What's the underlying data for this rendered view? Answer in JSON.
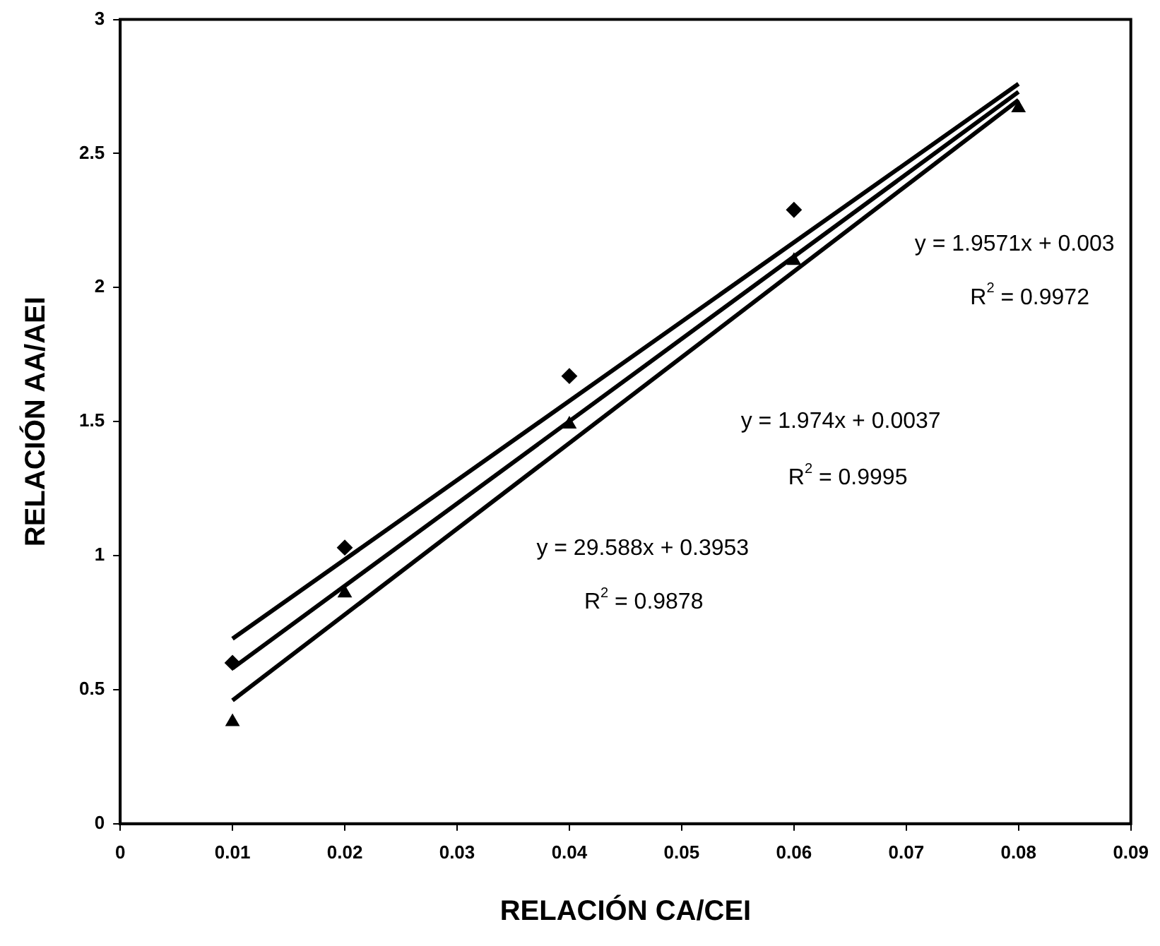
{
  "chart_data": {
    "type": "scatter",
    "xlabel": "RELACIÓN CA/CEI",
    "ylabel": "RELACIÓN AA/AEI",
    "xlim": [
      0,
      0.09
    ],
    "xticks": [
      0,
      0.01,
      0.02,
      0.03,
      0.04,
      0.05,
      0.06,
      0.07,
      0.08,
      0.09
    ],
    "ylim": [
      0,
      3
    ],
    "yticks": [
      0,
      0.5,
      1,
      1.5,
      2,
      2.5,
      3
    ],
    "grid": false,
    "legend": false,
    "series": [
      {
        "type": "scatter",
        "marker": "diamond",
        "color": "#000000",
        "x": [
          0.01,
          0.02,
          0.04,
          0.06
        ],
        "values": [
          0.6,
          1.03,
          1.67,
          2.29
        ]
      },
      {
        "type": "scatter",
        "marker": "triangle",
        "color": "#000000",
        "x": [
          0.01,
          0.02,
          0.04,
          0.06,
          0.08
        ],
        "values": [
          0.38,
          0.86,
          1.49,
          2.1,
          2.67
        ]
      },
      {
        "type": "line",
        "marker": "none",
        "color": "#000000",
        "x": [
          0.01,
          0.08
        ],
        "values": [
          0.69,
          2.76
        ]
      },
      {
        "type": "line",
        "marker": "none",
        "color": "#000000",
        "x": [
          0.01,
          0.08
        ],
        "values": [
          0.58,
          2.73
        ]
      },
      {
        "type": "line",
        "marker": "none",
        "color": "#000000",
        "x": [
          0.01,
          0.08
        ],
        "values": [
          0.46,
          2.7
        ]
      }
    ],
    "annotations": [
      "y = 1.9571x + 0.003",
      "R$^{2}$ = 0.9972",
      "y = 1.974x + 0.0037",
      "R$^{2}$ = 0.9995",
      "y = 29.588x + 0.3953",
      "R$^{2}$ = 0.9878"
    ]
  }
}
